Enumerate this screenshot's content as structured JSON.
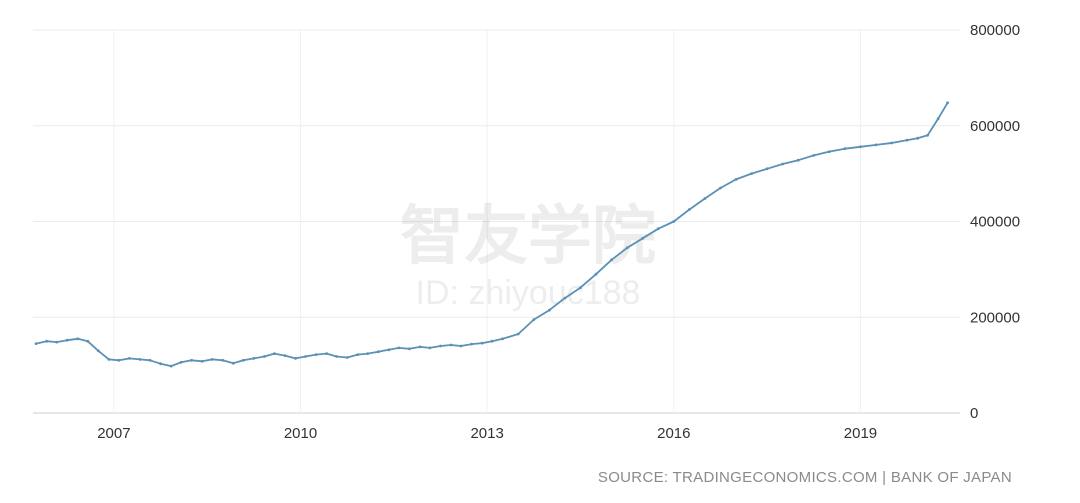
{
  "chart_data": {
    "type": "line",
    "title": "",
    "xlabel": "",
    "ylabel": "",
    "x_ticks": [
      "2007",
      "2010",
      "2013",
      "2016",
      "2019"
    ],
    "y_ticks": [
      "0",
      "200000",
      "400000",
      "600000",
      "800000"
    ],
    "xlim": [
      2005.7,
      2020.6
    ],
    "ylim": [
      0,
      800000
    ],
    "grid": true,
    "y_axis_position": "right",
    "series_color": "#5a91b5",
    "series": [
      {
        "x": [
          2005.75,
          2005.92,
          2006.08,
          2006.25,
          2006.42,
          2006.58,
          2006.75,
          2006.92,
          2007.08,
          2007.25,
          2007.42,
          2007.58,
          2007.75,
          2007.92,
          2008.08,
          2008.25,
          2008.42,
          2008.58,
          2008.75,
          2008.92,
          2009.08,
          2009.25,
          2009.42,
          2009.58,
          2009.75,
          2009.92,
          2010.08,
          2010.25,
          2010.42,
          2010.58,
          2010.75,
          2010.92,
          2011.08,
          2011.25,
          2011.42,
          2011.58,
          2011.75,
          2011.92,
          2012.08,
          2012.25,
          2012.42,
          2012.58,
          2012.75,
          2012.92,
          2013.08,
          2013.25,
          2013.5,
          2013.75,
          2014.0,
          2014.25,
          2014.5,
          2014.75,
          2015.0,
          2015.25,
          2015.5,
          2015.75,
          2016.0,
          2016.25,
          2016.5,
          2016.75,
          2017.0,
          2017.25,
          2017.5,
          2017.75,
          2018.0,
          2018.25,
          2018.5,
          2018.75,
          2019.0,
          2019.25,
          2019.5,
          2019.75,
          2019.92,
          2020.08,
          2020.25,
          2020.4
        ],
        "values": [
          145000,
          150000,
          148000,
          152000,
          155000,
          150000,
          130000,
          112000,
          110000,
          114000,
          112000,
          110000,
          103000,
          98000,
          106000,
          110000,
          108000,
          112000,
          110000,
          104000,
          110000,
          114000,
          118000,
          124000,
          120000,
          114000,
          118000,
          122000,
          124000,
          118000,
          116000,
          122000,
          124000,
          128000,
          132000,
          136000,
          134000,
          138000,
          136000,
          140000,
          142000,
          140000,
          144000,
          146000,
          150000,
          155000,
          165000,
          195000,
          215000,
          240000,
          262000,
          290000,
          320000,
          345000,
          365000,
          385000,
          400000,
          425000,
          448000,
          470000,
          488000,
          500000,
          510000,
          520000,
          528000,
          538000,
          546000,
          552000,
          556000,
          560000,
          564000,
          570000,
          574000,
          580000,
          615000,
          648000
        ]
      }
    ]
  },
  "watermark": {
    "main": "智友学院",
    "sub": "ID: zhiyouc188"
  },
  "source": "SOURCE: TRADINGECONOMICS.COM  |  BANK OF JAPAN"
}
